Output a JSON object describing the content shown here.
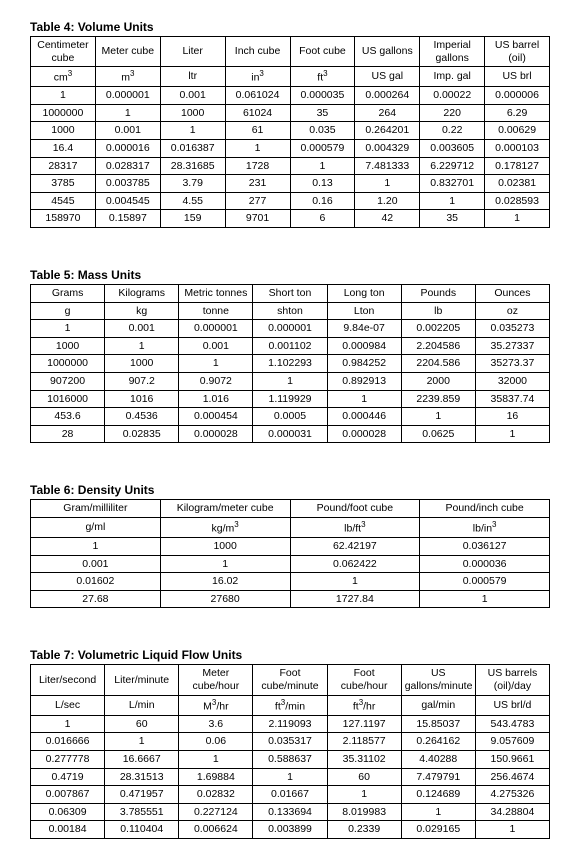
{
  "tables": [
    {
      "title": "Table 4:  Volume Units",
      "headers": [
        [
          "Centimeter cube",
          "Meter cube",
          "Liter",
          "Inch cube",
          "Foot cube",
          "US gallons",
          "Imperial gallons",
          "US barrel (oil)"
        ],
        [
          "cm<sup>3</sup>",
          "m<sup>3</sup>",
          "ltr",
          "in<sup>3</sup>",
          "ft<sup>3</sup>",
          "US gal",
          "Imp. gal",
          "US brl"
        ]
      ],
      "rows": [
        [
          "1",
          "0.000001",
          "0.001",
          "0.061024",
          "0.000035",
          "0.000264",
          "0.00022",
          "0.000006"
        ],
        [
          "1000000",
          "1",
          "1000",
          "61024",
          "35",
          "264",
          "220",
          "6.29"
        ],
        [
          "1000",
          "0.001",
          "1",
          "61",
          "0.035",
          "0.264201",
          "0.22",
          "0.00629"
        ],
        [
          "16.4",
          "0.000016",
          "0.016387",
          "1",
          "0.000579",
          "0.004329",
          "0.003605",
          "0.000103"
        ],
        [
          "28317",
          "0.028317",
          "28.31685",
          "1728",
          "1",
          "7.481333",
          "6.229712",
          "0.178127"
        ],
        [
          "3785",
          "0.003785",
          "3.79",
          "231",
          "0.13",
          "1",
          "0.832701",
          "0.02381"
        ],
        [
          "4545",
          "0.004545",
          "4.55",
          "277",
          "0.16",
          "1.20",
          "1",
          "0.028593"
        ],
        [
          "158970",
          "0.15897",
          "159",
          "9701",
          "6",
          "42",
          "35",
          "1"
        ]
      ]
    },
    {
      "title": "Table 5:  Mass Units",
      "headers": [
        [
          "Grams",
          "Kilograms",
          "Metric tonnes",
          "Short ton",
          "Long ton",
          "Pounds",
          "Ounces"
        ],
        [
          "g",
          "kg",
          "tonne",
          "shton",
          "Lton",
          "lb",
          "oz"
        ]
      ],
      "rows": [
        [
          "1",
          "0.001",
          "0.000001",
          "0.000001",
          "9.84e-07",
          "0.002205",
          "0.035273"
        ],
        [
          "1000",
          "1",
          "0.001",
          "0.001102",
          "0.000984",
          "2.204586",
          "35.27337"
        ],
        [
          "1000000",
          "1000",
          "1",
          "1.102293",
          "0.984252",
          "2204.586",
          "35273.37"
        ],
        [
          "907200",
          "907.2",
          "0.9072",
          "1",
          "0.892913",
          "2000",
          "32000"
        ],
        [
          "1016000",
          "1016",
          "1.016",
          "1.119929",
          "1",
          "2239.859",
          "35837.74"
        ],
        [
          "453.6",
          "0.4536",
          "0.000454",
          "0.0005",
          "0.000446",
          "1",
          "16"
        ],
        [
          "28",
          "0.02835",
          "0.000028",
          "0.000031",
          "0.000028",
          "0.0625",
          "1"
        ]
      ]
    },
    {
      "title": "Table 6:  Density Units",
      "headers": [
        [
          "Gram/milliliter",
          "Kilogram/meter cube",
          "Pound/foot cube",
          "Pound/inch cube"
        ],
        [
          "g/ml",
          "kg/m<sup>3</sup>",
          "lb/ft<sup>3</sup>",
          "lb/in<sup>3</sup>"
        ]
      ],
      "rows": [
        [
          "1",
          "1000",
          "62.42197",
          "0.036127"
        ],
        [
          "0.001",
          "1",
          "0.062422",
          "0.000036"
        ],
        [
          "0.01602",
          "16.02",
          "1",
          "0.000579"
        ],
        [
          "27.68",
          "27680",
          "1727.84",
          "1"
        ]
      ]
    },
    {
      "title": "Table 7:  Volumetric Liquid Flow Units",
      "headers": [
        [
          "Liter/second",
          "Liter/minute",
          "Meter cube/hour",
          "Foot cube/minute",
          "Foot cube/hour",
          "US gallons/minute",
          "US barrels (oil)/day"
        ],
        [
          "L/sec",
          "L/min",
          "M<sup>3</sup>/hr",
          "ft<sup>3</sup>/min",
          "ft<sup>3</sup>/hr",
          "gal/min",
          "US brl/d"
        ]
      ],
      "rows": [
        [
          "1",
          "60",
          "3.6",
          "2.119093",
          "127.1197",
          "15.85037",
          "543.4783"
        ],
        [
          "0.016666",
          "1",
          "0.06",
          "0.035317",
          "2.118577",
          "0.264162",
          "9.057609"
        ],
        [
          "0.277778",
          "16.6667",
          "1",
          "0.588637",
          "35.31102",
          "4.40288",
          "150.9661"
        ],
        [
          "0.4719",
          "28.31513",
          "1.69884",
          "1",
          "60",
          "7.479791",
          "256.4674"
        ],
        [
          "0.007867",
          "0.471957",
          "0.02832",
          "0.01667",
          "1",
          "0.124689",
          "4.275326"
        ],
        [
          "0.06309",
          "3.785551",
          "0.227124",
          "0.133694",
          "8.019983",
          "1",
          "34.28804"
        ],
        [
          "0.00184",
          "0.110404",
          "0.006624",
          "0.003899",
          "0.2339",
          "0.029165",
          "1"
        ]
      ]
    }
  ]
}
